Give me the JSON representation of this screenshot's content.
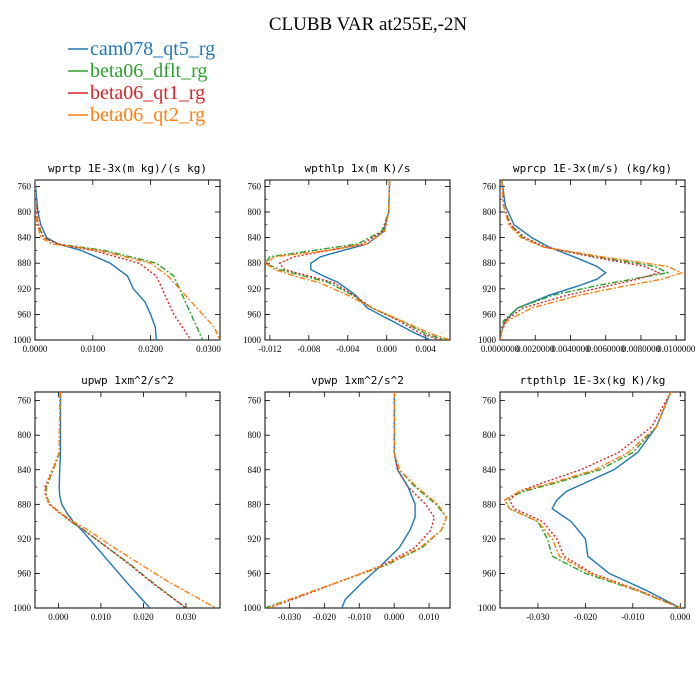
{
  "figure_title": "CLUBB VAR at255E,-2N",
  "legend": [
    {
      "name": "cam078_qt5_rg",
      "color": "#1f77b4",
      "dash": "solid"
    },
    {
      "name": "beta06_dflt_rg",
      "color": "#2ca02c",
      "dash": "dashdot"
    },
    {
      "name": "beta06_qt1_rg",
      "color": "#d62728",
      "dash": "dotted"
    },
    {
      "name": "beta06_qt2_rg",
      "color": "#ff7f0e",
      "dash": "dashdot"
    }
  ],
  "chart_data": [
    {
      "type": "line",
      "title": "wprtp  1E-3x(m kg)/(s kg)",
      "xlim": [
        0,
        0.032
      ],
      "ylim": [
        1000,
        750
      ],
      "xticks": [
        0,
        0.01,
        0.02,
        0.03
      ],
      "xticklabels": [
        "0.0000",
        "0.0100",
        "0.0200",
        "0.0300"
      ],
      "yticks": [
        760,
        800,
        840,
        880,
        920,
        960,
        1000
      ],
      "y": [
        750,
        800,
        820,
        840,
        850,
        860,
        880,
        900,
        920,
        940,
        960,
        980,
        1000
      ],
      "series": [
        {
          "name": "cam078_qt5_rg",
          "x": [
            0,
            0.0005,
            0.001,
            0.002,
            0.004,
            0.008,
            0.013,
            0.016,
            0.017,
            0.019,
            0.02,
            0.0208,
            0.021
          ]
        },
        {
          "name": "beta06_dflt_rg",
          "x": [
            0,
            0.0002,
            0.0005,
            0.0015,
            0.004,
            0.012,
            0.021,
            0.024,
            0.025,
            0.026,
            0.027,
            0.028,
            0.029
          ]
        },
        {
          "name": "beta06_qt1_rg",
          "x": [
            0,
            0.0002,
            0.0006,
            0.0015,
            0.004,
            0.01,
            0.018,
            0.021,
            0.022,
            0.023,
            0.024,
            0.0255,
            0.027
          ]
        },
        {
          "name": "beta06_qt2_rg",
          "x": [
            0,
            0.0001,
            0.0004,
            0.001,
            0.003,
            0.011,
            0.02,
            0.023,
            0.025,
            0.027,
            0.029,
            0.031,
            0.032
          ]
        }
      ]
    },
    {
      "type": "line",
      "title": "wpthlp  1x(m K)/s",
      "xlim": [
        -0.0125,
        0.0065
      ],
      "ylim": [
        1000,
        750
      ],
      "xticks": [
        -0.012,
        -0.008,
        -0.004,
        0,
        0.004
      ],
      "xticklabels": [
        "-0.012",
        "-0.008",
        "-0.004",
        "0.000",
        "0.004"
      ],
      "yticks": [
        760,
        800,
        840,
        880,
        920,
        960,
        1000
      ],
      "y": [
        750,
        800,
        830,
        850,
        860,
        870,
        880,
        890,
        900,
        910,
        930,
        950,
        970,
        990,
        1000
      ],
      "series": [
        {
          "name": "cam078_qt5_rg",
          "x": [
            0.0003,
            0.0002,
            -0.0003,
            -0.002,
            -0.0045,
            -0.0068,
            -0.0078,
            -0.0078,
            -0.0065,
            -0.005,
            -0.0032,
            -0.002,
            0.0005,
            0.003,
            0.0045
          ]
        },
        {
          "name": "beta06_dflt_rg",
          "x": [
            0.0003,
            0.0002,
            -0.0005,
            -0.003,
            -0.0075,
            -0.012,
            -0.0125,
            -0.011,
            -0.0085,
            -0.006,
            -0.0035,
            -0.0015,
            0.0015,
            0.004,
            0.006
          ]
        },
        {
          "name": "beta06_qt1_rg",
          "x": [
            0.0003,
            0.0002,
            -0.0004,
            -0.0025,
            -0.006,
            -0.0095,
            -0.011,
            -0.0105,
            -0.008,
            -0.0055,
            -0.0034,
            -0.0015,
            0.0012,
            0.0035,
            0.0055
          ]
        },
        {
          "name": "beta06_qt2_rg",
          "x": [
            0.0003,
            0.0002,
            -0.0002,
            -0.002,
            -0.006,
            -0.0115,
            -0.0125,
            -0.0115,
            -0.0095,
            -0.007,
            -0.004,
            -0.0015,
            0.0015,
            0.0045,
            0.0065
          ]
        }
      ]
    },
    {
      "type": "line",
      "title": "wprcp  1E-3x(m/s) (kg/kg)",
      "xlim": [
        0,
        0.0105
      ],
      "ylim": [
        1000,
        750
      ],
      "xticks": [
        0,
        0.002,
        0.004,
        0.006,
        0.008,
        0.01
      ],
      "xticklabels": [
        "0.0000000",
        "0.0020000",
        "0.0040000",
        "0.0060000",
        "0.0080000",
        "0.0100000"
      ],
      "yticks": [
        760,
        800,
        840,
        880,
        920,
        960,
        1000
      ],
      "y": [
        750,
        790,
        820,
        840,
        855,
        870,
        885,
        895,
        905,
        915,
        930,
        950,
        970,
        985,
        1000
      ],
      "series": [
        {
          "name": "cam078_qt5_rg",
          "x": [
            0.0001,
            0.0003,
            0.0008,
            0.0018,
            0.0028,
            0.0042,
            0.0055,
            0.006,
            0.0055,
            0.0045,
            0.0028,
            0.001,
            0.0003,
            0.0001,
            0
          ]
        },
        {
          "name": "beta06_dflt_rg",
          "x": [
            0.0001,
            0.0002,
            0.0006,
            0.0013,
            0.0025,
            0.0055,
            0.0088,
            0.0095,
            0.0075,
            0.0055,
            0.003,
            0.001,
            0.0002,
            0.0001,
            0
          ]
        },
        {
          "name": "beta06_qt1_rg",
          "x": [
            0.0001,
            0.0002,
            0.0006,
            0.0014,
            0.0026,
            0.0052,
            0.0082,
            0.009,
            0.0078,
            0.0062,
            0.0038,
            0.0013,
            0.0003,
            0.0001,
            0
          ]
        },
        {
          "name": "beta06_qt2_rg",
          "x": [
            0.0001,
            0.0002,
            0.0005,
            0.0012,
            0.0025,
            0.0058,
            0.0095,
            0.0103,
            0.0092,
            0.0072,
            0.0045,
            0.0018,
            0.0004,
            0.0001,
            0
          ]
        }
      ]
    },
    {
      "type": "line",
      "title": "upwp  1xm^2/s^2",
      "xlim": [
        -0.0055,
        0.038
      ],
      "ylim": [
        1000,
        750
      ],
      "xticks": [
        0,
        0.01,
        0.02,
        0.03
      ],
      "xticklabels": [
        "0.000",
        "0.010",
        "0.020",
        "0.030"
      ],
      "yticks": [
        760,
        800,
        840,
        880,
        920,
        960,
        1000
      ],
      "y": [
        750,
        820,
        840,
        860,
        870,
        880,
        890,
        900,
        910,
        930,
        950,
        970,
        1000
      ],
      "series": [
        {
          "name": "cam078_qt5_rg",
          "x": [
            0.0005,
            0.0005,
            0.0003,
            0.0002,
            0.0003,
            0.0008,
            0.002,
            0.0035,
            0.0055,
            0.009,
            0.0125,
            0.016,
            0.0215
          ]
        },
        {
          "name": "beta06_dflt_rg",
          "x": [
            0.0004,
            0.0003,
            -0.0012,
            -0.0028,
            -0.0028,
            -0.002,
            0.0005,
            0.003,
            0.006,
            0.0115,
            0.017,
            0.022,
            0.03
          ]
        },
        {
          "name": "beta06_qt1_rg",
          "x": [
            0.0004,
            0.0002,
            -0.0014,
            -0.0032,
            -0.003,
            -0.0022,
            0.0003,
            0.003,
            0.006,
            0.0115,
            0.0168,
            0.0218,
            0.03
          ]
        },
        {
          "name": "beta06_qt2_rg",
          "x": [
            0.0004,
            0.0002,
            -0.0013,
            -0.003,
            -0.003,
            -0.002,
            0.0005,
            0.0035,
            0.007,
            0.013,
            0.0195,
            0.026,
            0.037
          ]
        }
      ]
    },
    {
      "type": "line",
      "title": "vpwp  1xm^2/s^2",
      "xlim": [
        -0.037,
        0.016
      ],
      "ylim": [
        1000,
        750
      ],
      "xticks": [
        -0.03,
        -0.02,
        -0.01,
        0,
        0.01
      ],
      "xticklabels": [
        "-0.030",
        "-0.020",
        "-0.010",
        "0.000",
        "0.010"
      ],
      "yticks": [
        760,
        800,
        840,
        880,
        920,
        960,
        1000
      ],
      "y": [
        750,
        820,
        840,
        860,
        880,
        895,
        910,
        930,
        950,
        970,
        990,
        1000
      ],
      "series": [
        {
          "name": "cam078_qt5_rg",
          "x": [
            0,
            0,
            0.001,
            0.004,
            0.006,
            0.006,
            0.0045,
            0.0015,
            -0.0035,
            -0.009,
            -0.014,
            -0.015
          ]
        },
        {
          "name": "beta06_dflt_rg",
          "x": [
            0,
            0,
            0.0015,
            0.006,
            0.012,
            0.015,
            0.0135,
            0.008,
            -0.002,
            -0.016,
            -0.03,
            -0.037
          ]
        },
        {
          "name": "beta06_qt1_rg",
          "x": [
            0,
            0,
            0.001,
            0.004,
            0.009,
            0.0115,
            0.0105,
            0.006,
            -0.003,
            -0.016,
            -0.029,
            -0.036
          ]
        },
        {
          "name": "beta06_qt2_rg",
          "x": [
            0,
            0,
            0.0015,
            0.0065,
            0.0125,
            0.015,
            0.0135,
            0.0075,
            -0.0025,
            -0.016,
            -0.03,
            -0.036
          ]
        }
      ]
    },
    {
      "type": "line",
      "title": "rtpthlp  1E-3x(kg K)/kg",
      "xlim": [
        -0.038,
        0.001
      ],
      "ylim": [
        1000,
        750
      ],
      "xticks": [
        -0.03,
        -0.02,
        -0.01,
        0
      ],
      "xticklabels": [
        "-0.030",
        "-0.020",
        "-0.010",
        "0.000"
      ],
      "yticks": [
        760,
        800,
        840,
        880,
        920,
        960,
        1000
      ],
      "y": [
        750,
        790,
        820,
        840,
        855,
        865,
        875,
        885,
        900,
        920,
        940,
        960,
        980,
        1000
      ],
      "series": [
        {
          "name": "cam078_qt5_rg",
          "x": [
            -0.002,
            -0.005,
            -0.009,
            -0.014,
            -0.02,
            -0.024,
            -0.026,
            -0.027,
            -0.023,
            -0.02,
            -0.0195,
            -0.015,
            -0.007,
            0
          ]
        },
        {
          "name": "beta06_dflt_rg",
          "x": [
            -0.002,
            -0.005,
            -0.01,
            -0.017,
            -0.026,
            -0.033,
            -0.037,
            -0.036,
            -0.03,
            -0.028,
            -0.027,
            -0.02,
            -0.009,
            0
          ]
        },
        {
          "name": "beta06_qt1_rg",
          "x": [
            -0.002,
            -0.006,
            -0.013,
            -0.021,
            -0.029,
            -0.034,
            -0.036,
            -0.035,
            -0.029,
            -0.026,
            -0.0245,
            -0.0185,
            -0.0085,
            0
          ]
        },
        {
          "name": "beta06_qt2_rg",
          "x": [
            -0.002,
            -0.005,
            -0.011,
            -0.018,
            -0.027,
            -0.034,
            -0.037,
            -0.036,
            -0.03,
            -0.027,
            -0.0255,
            -0.019,
            -0.009,
            0
          ]
        }
      ]
    }
  ]
}
